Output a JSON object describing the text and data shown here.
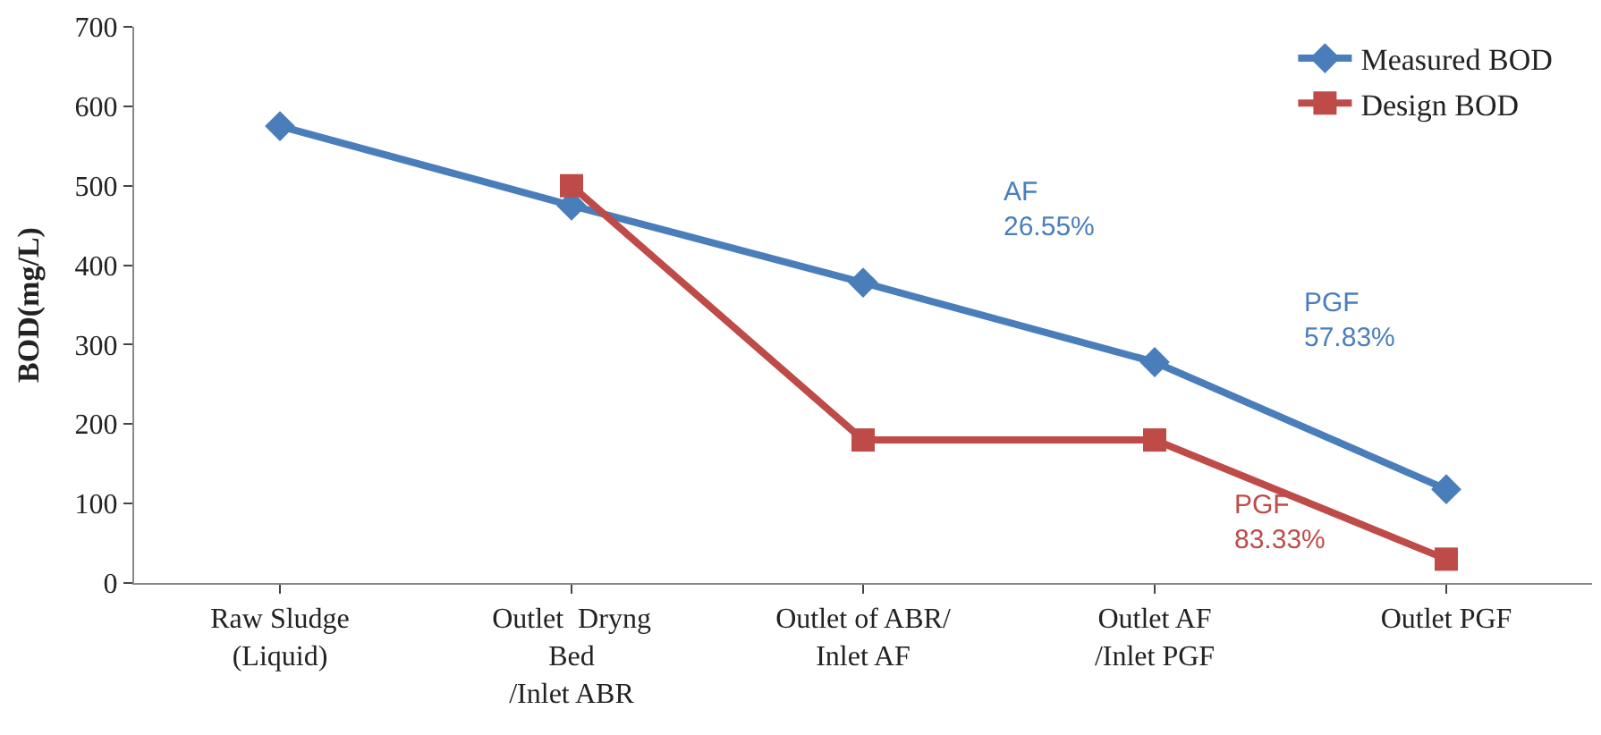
{
  "chart_data": {
    "type": "line",
    "ylabel": "BOD(mg/L)",
    "categories": [
      "Raw Sludge\n(Liquid)",
      "Outlet  Dryng\nBed\n/Inlet ABR",
      "Outlet of ABR/\nInlet AF",
      "Outlet AF\n/Inlet PGF",
      "Outlet PGF"
    ],
    "series": [
      {
        "name": "Measured BOD",
        "color": "#4a7ebb",
        "values": [
          575,
          475,
          378,
          278,
          118
        ],
        "marker": "diamond"
      },
      {
        "name": "Design BOD",
        "color": "#be4b48",
        "values": [
          null,
          500,
          180,
          180,
          30
        ],
        "marker": "square"
      }
    ],
    "annotations": [
      "AF\n26.55%",
      "PGF\n57.83%",
      "PGF\n83.33%"
    ],
    "ylim": [
      0,
      700
    ],
    "yticks": [
      0,
      100,
      200,
      300,
      400,
      500,
      600,
      700
    ],
    "legend": "top right",
    "line_style": "solid"
  }
}
